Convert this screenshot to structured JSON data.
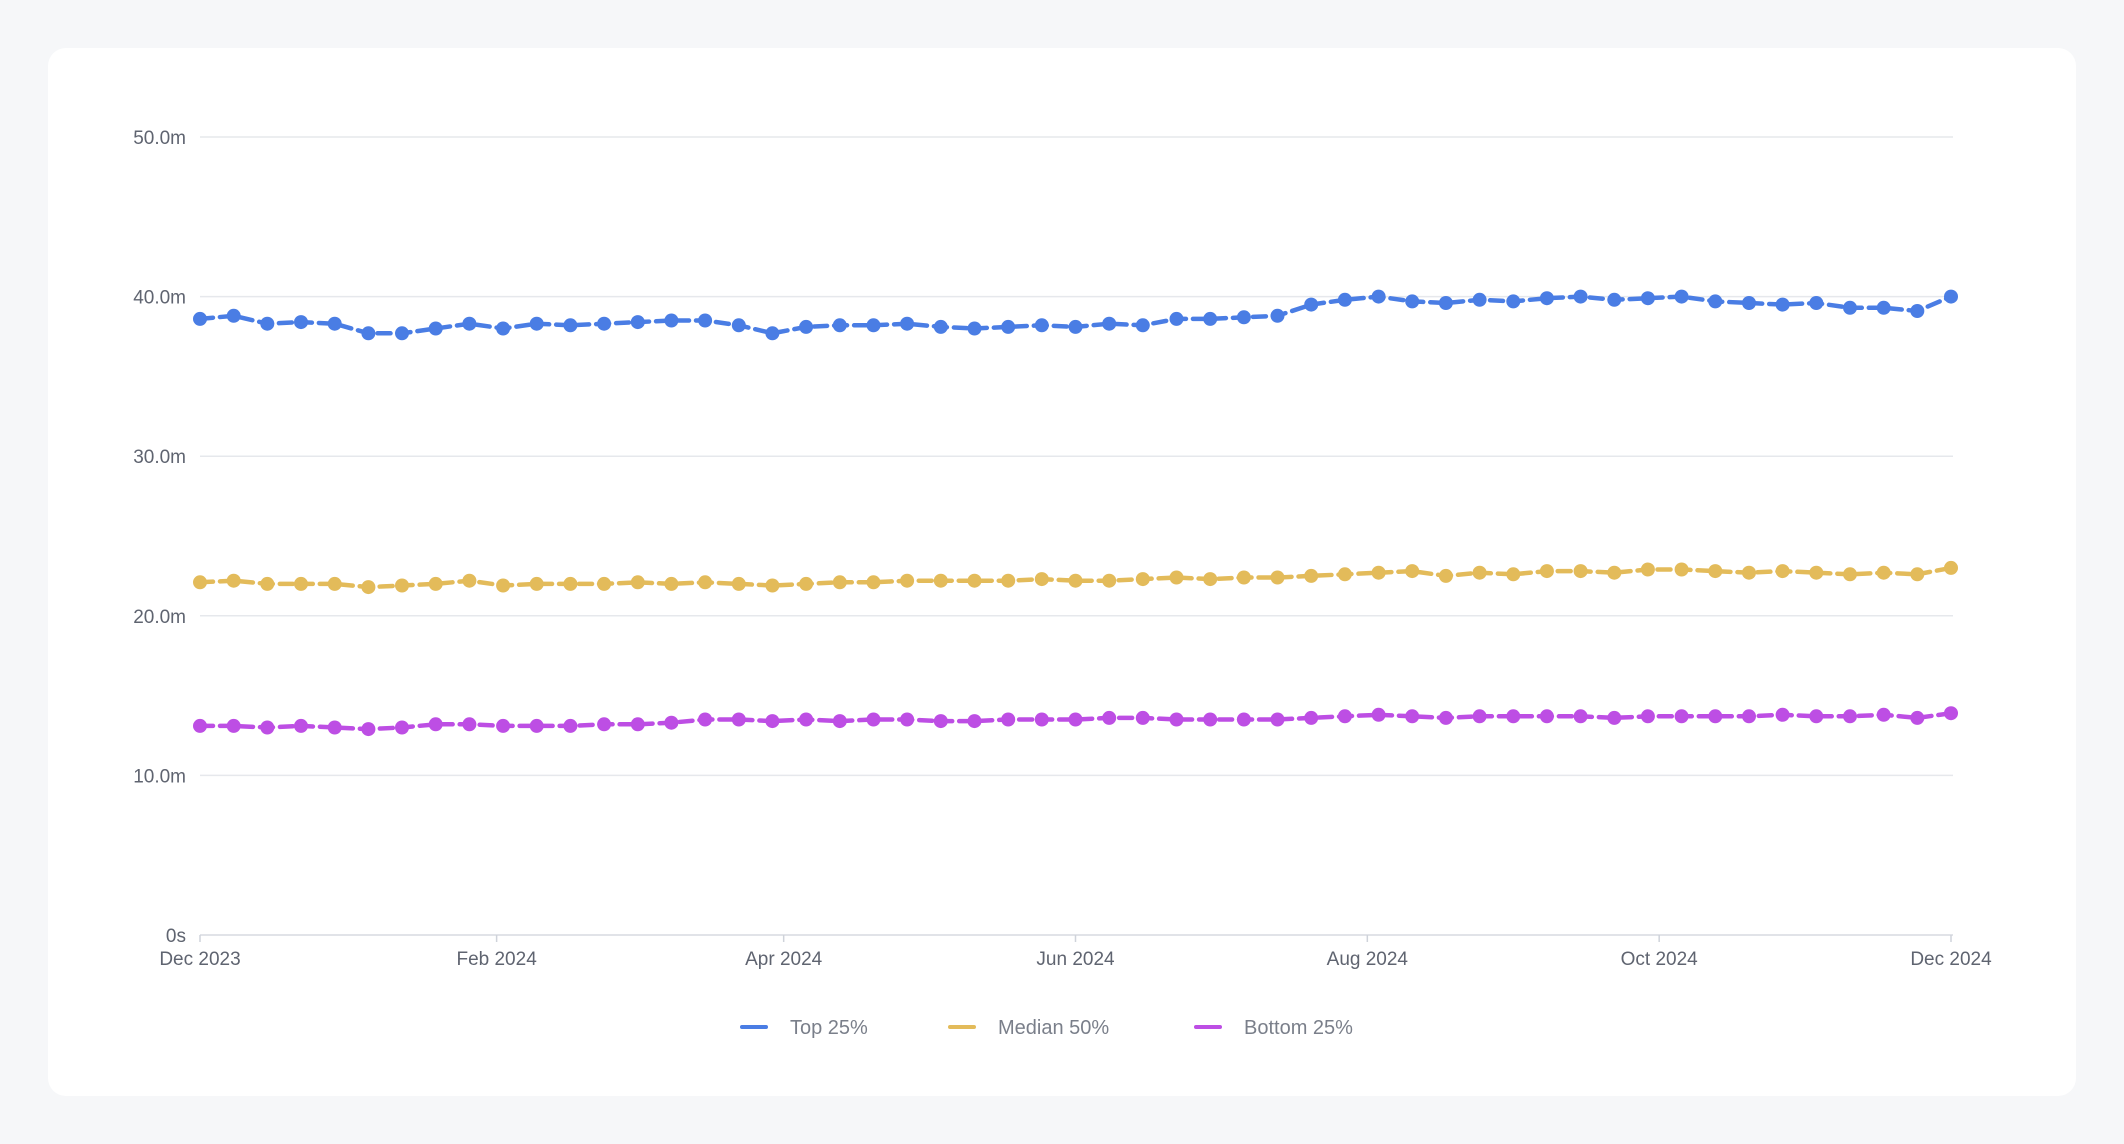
{
  "chart_data": {
    "type": "line",
    "title": "",
    "xlabel": "",
    "ylabel": "",
    "y_ticks": [
      "0s",
      "10.0m",
      "20.0m",
      "30.0m",
      "40.0m",
      "50.0m"
    ],
    "ylim": [
      0,
      50
    ],
    "y_unit": "minutes",
    "x_ticks": [
      "Dec 2023",
      "Feb 2024",
      "Apr 2024",
      "Jun 2024",
      "Aug 2024",
      "Oct 2024",
      "Dec 2024"
    ],
    "xlim": [
      "2023-12-01",
      "2024-12-01"
    ],
    "x_interval": "weekly",
    "line_style": "dashed",
    "markers": true,
    "grid": true,
    "legend_position": "bottom-center",
    "series": [
      {
        "name": "Top 25%",
        "color": "#4a7de4",
        "values": [
          38.6,
          38.8,
          38.3,
          38.4,
          38.3,
          37.7,
          37.7,
          38.0,
          38.3,
          38.0,
          38.3,
          38.2,
          38.3,
          38.4,
          38.5,
          38.5,
          38.2,
          37.7,
          38.1,
          38.2,
          38.2,
          38.3,
          38.1,
          38.0,
          38.1,
          38.2,
          38.1,
          38.3,
          38.2,
          38.6,
          38.6,
          38.7,
          38.8,
          39.5,
          39.8,
          40.0,
          39.7,
          39.6,
          39.8,
          39.7,
          39.9,
          40.0,
          39.8,
          39.9,
          40.0,
          39.7,
          39.6,
          39.5,
          39.6,
          39.3,
          39.3,
          39.1,
          40.0
        ]
      },
      {
        "name": "Median 50%",
        "color": "#e3bb5a",
        "values": [
          22.1,
          22.2,
          22.0,
          22.0,
          22.0,
          21.8,
          21.9,
          22.0,
          22.2,
          21.9,
          22.0,
          22.0,
          22.0,
          22.1,
          22.0,
          22.1,
          22.0,
          21.9,
          22.0,
          22.1,
          22.1,
          22.2,
          22.2,
          22.2,
          22.2,
          22.3,
          22.2,
          22.2,
          22.3,
          22.4,
          22.3,
          22.4,
          22.4,
          22.5,
          22.6,
          22.7,
          22.8,
          22.5,
          22.7,
          22.6,
          22.8,
          22.8,
          22.7,
          22.9,
          22.9,
          22.8,
          22.7,
          22.8,
          22.7,
          22.6,
          22.7,
          22.6,
          23.0
        ]
      },
      {
        "name": "Bottom 25%",
        "color": "#bd4ee4",
        "values": [
          13.1,
          13.1,
          13.0,
          13.1,
          13.0,
          12.9,
          13.0,
          13.2,
          13.2,
          13.1,
          13.1,
          13.1,
          13.2,
          13.2,
          13.3,
          13.5,
          13.5,
          13.4,
          13.5,
          13.4,
          13.5,
          13.5,
          13.4,
          13.4,
          13.5,
          13.5,
          13.5,
          13.6,
          13.6,
          13.5,
          13.5,
          13.5,
          13.5,
          13.6,
          13.7,
          13.8,
          13.7,
          13.6,
          13.7,
          13.7,
          13.7,
          13.7,
          13.6,
          13.7,
          13.7,
          13.7,
          13.7,
          13.8,
          13.7,
          13.7,
          13.8,
          13.6,
          13.9
        ]
      }
    ]
  }
}
